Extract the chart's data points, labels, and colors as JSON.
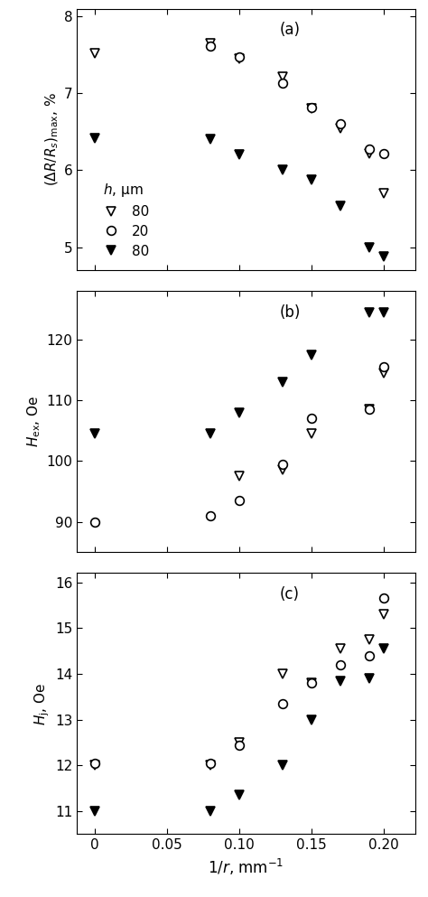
{
  "panel_a": {
    "title": "(a)",
    "ylabel": "($\\Delta R/R_s$)$_{\\rm max}$, %",
    "ylim": [
      4.7,
      8.1
    ],
    "yticks": [
      5,
      6,
      7,
      8
    ],
    "open_triangle": {
      "x": [
        0.0,
        0.08,
        0.1,
        0.13,
        0.15,
        0.17,
        0.19,
        0.2
      ],
      "y": [
        7.52,
        7.65,
        7.45,
        7.22,
        6.8,
        6.55,
        6.22,
        5.7
      ]
    },
    "open_circle": {
      "x": [
        0.08,
        0.1,
        0.13,
        0.15,
        0.17,
        0.19,
        0.2
      ],
      "y": [
        7.62,
        7.48,
        7.13,
        6.82,
        6.6,
        6.28,
        6.22
      ]
    },
    "filled_triangle": {
      "x": [
        0.0,
        0.08,
        0.1,
        0.13,
        0.15,
        0.17,
        0.19,
        0.2
      ],
      "y": [
        6.42,
        6.4,
        6.2,
        6.0,
        5.88,
        5.53,
        5.0,
        4.88
      ]
    }
  },
  "panel_b": {
    "title": "(b)",
    "ylabel": "$H_{\\rm ex}$, Oe",
    "ylim": [
      85,
      128
    ],
    "yticks": [
      90,
      100,
      110,
      120
    ],
    "open_triangle": {
      "x": [
        0.1,
        0.13,
        0.15,
        0.19,
        0.2
      ],
      "y": [
        97.5,
        98.5,
        104.5,
        108.5,
        114.5
      ]
    },
    "open_circle": {
      "x": [
        0.0,
        0.08,
        0.1,
        0.13,
        0.15,
        0.19,
        0.2
      ],
      "y": [
        90.0,
        91.0,
        93.5,
        99.5,
        107.0,
        108.5,
        115.5
      ]
    },
    "filled_triangle": {
      "x": [
        0.0,
        0.08,
        0.1,
        0.13,
        0.15,
        0.19,
        0.2
      ],
      "y": [
        104.5,
        104.5,
        108.0,
        113.0,
        117.5,
        124.5,
        124.5
      ]
    }
  },
  "panel_c": {
    "title": "(c)",
    "ylabel": "$H_{\\rm j}$, Oe",
    "ylim": [
      10.5,
      16.2
    ],
    "yticks": [
      11,
      12,
      13,
      14,
      15,
      16
    ],
    "xlabel": "1/$r$, mm$^{-1}$",
    "open_triangle": {
      "x": [
        0.0,
        0.08,
        0.1,
        0.13,
        0.15,
        0.17,
        0.19,
        0.2
      ],
      "y": [
        12.0,
        12.0,
        12.5,
        14.0,
        13.8,
        14.55,
        14.75,
        15.3
      ]
    },
    "open_circle": {
      "x": [
        0.0,
        0.08,
        0.1,
        0.13,
        0.15,
        0.17,
        0.19,
        0.2
      ],
      "y": [
        12.05,
        12.05,
        12.45,
        13.35,
        13.8,
        14.2,
        14.4,
        15.65
      ]
    },
    "filled_triangle": {
      "x": [
        0.0,
        0.08,
        0.1,
        0.13,
        0.15,
        0.17,
        0.19,
        0.2
      ],
      "y": [
        11.0,
        11.0,
        11.35,
        12.0,
        13.0,
        13.85,
        13.9,
        14.55
      ]
    }
  },
  "xticks": [
    0.0,
    0.05,
    0.1,
    0.15,
    0.2
  ],
  "xlim": [
    -0.012,
    0.222
  ],
  "marker_size": 7,
  "mew": 1.2,
  "background_color": "#ffffff"
}
